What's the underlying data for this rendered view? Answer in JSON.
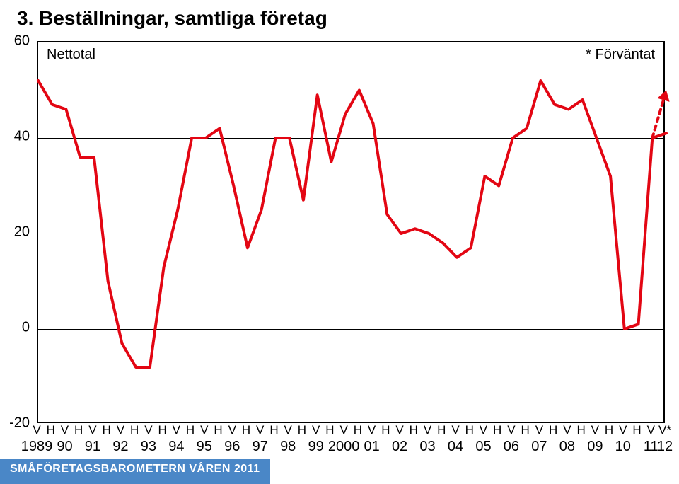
{
  "title": "3. Beställningar, samtliga företag",
  "footer": "SMÅFÖRETAGSBAROMETERN VÅREN 2011",
  "legend": {
    "left": "Nettotal",
    "right": "* Förväntat"
  },
  "chart": {
    "type": "line",
    "background_color": "#ffffff",
    "border_color": "#000000",
    "border_width": 2,
    "line_color": "#e30613",
    "line_width": 4,
    "forecast_dash": "6,6",
    "ylim": [
      -20,
      60
    ],
    "yticks": [
      -20,
      0,
      20,
      40,
      60
    ],
    "ylabel_fontsize": 20,
    "xlabels_vh": [
      "V",
      "H",
      "V",
      "H",
      "V",
      "H",
      "V",
      "H",
      "V",
      "H",
      "V",
      "H",
      "V",
      "H",
      "V",
      "H",
      "V",
      "H",
      "V",
      "H",
      "V",
      "H",
      "V",
      "H",
      "V",
      "H",
      "V",
      "H",
      "V",
      "H",
      "V",
      "H",
      "V",
      "H",
      "V",
      "H",
      "V",
      "H",
      "V",
      "H",
      "V",
      "H",
      "V",
      "H",
      "V",
      "V*"
    ],
    "xlabels_year": [
      "1989",
      "90",
      "91",
      "92",
      "93",
      "94",
      "95",
      "96",
      "97",
      "98",
      "99",
      "2000",
      "01",
      "02",
      "03",
      "04",
      "05",
      "06",
      "07",
      "08",
      "09",
      "10",
      "11",
      "12"
    ],
    "values": [
      52,
      47,
      46,
      36,
      36,
      10,
      -3,
      -8,
      -8,
      13,
      25,
      40,
      40,
      42,
      30,
      17,
      25,
      40,
      40,
      27,
      49,
      35,
      45,
      50,
      43,
      24,
      20,
      21,
      20,
      18,
      15,
      17,
      32,
      30,
      40,
      42,
      52,
      47,
      46,
      48,
      40,
      32,
      0,
      1,
      40,
      41
    ],
    "forecast_from_index": 44,
    "forecast_value": 50
  }
}
